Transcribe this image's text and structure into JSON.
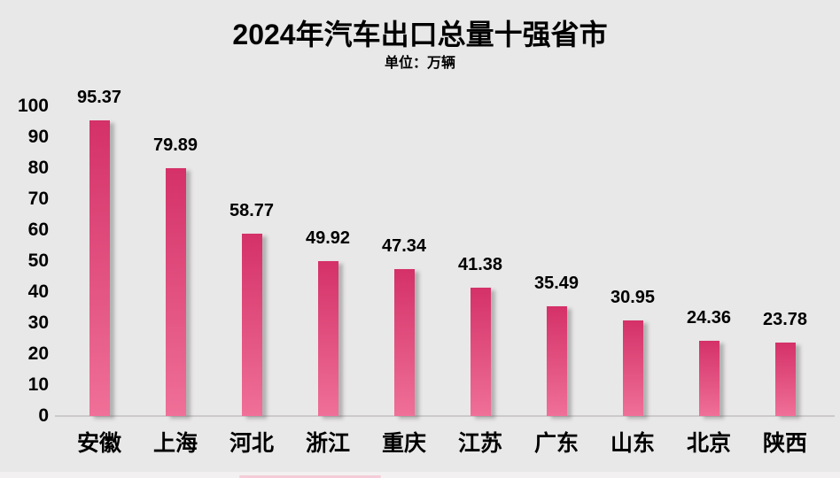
{
  "chart_data": {
    "type": "bar",
    "title": "2024年汽车出口总量十强省市",
    "unit_label": "单位：万辆",
    "categories": [
      "安徽",
      "上海",
      "河北",
      "浙江",
      "重庆",
      "江苏",
      "广东",
      "山东",
      "北京",
      "陕西"
    ],
    "values": [
      95.37,
      79.89,
      58.77,
      49.92,
      47.34,
      41.38,
      35.49,
      30.95,
      24.36,
      23.78
    ],
    "data_labels": [
      "95.37",
      "79.89",
      "58.77",
      "49.92",
      "47.34",
      "41.38",
      "35.49",
      "30.95",
      "24.36",
      "23.78"
    ],
    "xlabel": "",
    "ylabel": "",
    "ylim": [
      0,
      100
    ],
    "yticks": [
      0,
      10,
      20,
      30,
      40,
      50,
      60,
      70,
      80,
      90,
      100
    ],
    "grid": false,
    "legend": "none",
    "colors": {
      "bar_gradient_top": "#d43168",
      "bar_gradient_bottom": "#ef7098",
      "background": "#e9e8e8",
      "axis_line": "#cbc9c9",
      "text": "#000000"
    }
  }
}
